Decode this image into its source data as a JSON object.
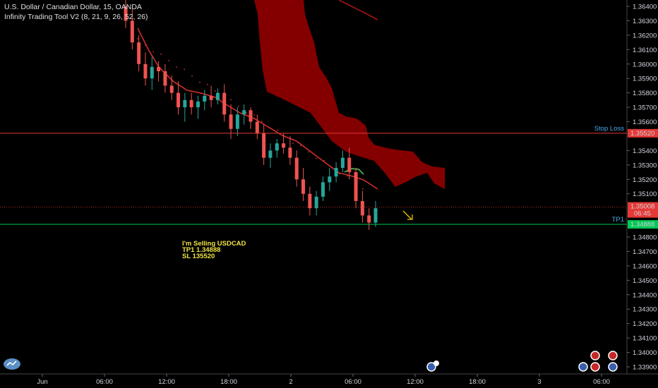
{
  "header": {
    "symbol_line": "U.S. Dollar / Canadian Dollar, 15, OANDA",
    "indicator_line": "Infinity Trading Tool V2 (8, 21, 9, 26, 52, 26)"
  },
  "chart_data": {
    "type": "candlestick",
    "symbol": "USDCAD",
    "interval": "15",
    "source": "OANDA",
    "ylim": [
      1.339,
      1.3645
    ],
    "y_ticks": [
      "1.36400",
      "1.36300",
      "1.36200",
      "1.36100",
      "1.36000",
      "1.35900",
      "1.35800",
      "1.35700",
      "1.35600",
      "1.35520",
      "1.35400",
      "1.35300",
      "1.35200",
      "1.35100",
      "1.35008",
      "1.34888",
      "1.34800",
      "1.34700",
      "1.34600",
      "1.34500",
      "1.34400",
      "1.34300",
      "1.34200",
      "1.34100",
      "1.34000",
      "1.33900"
    ],
    "x_ticks": [
      "Jun",
      "06:00",
      "12:00",
      "18:00",
      "2",
      "06:00",
      "12:00",
      "18:00",
      "3",
      "06:00"
    ],
    "lines": [
      {
        "name": "Stop Loss",
        "value": 1.3552,
        "color": "#e53935",
        "label": "Stop Loss",
        "price_tag": "1.35520"
      },
      {
        "name": "Last",
        "value": 1.35008,
        "color": "#e53935",
        "dotted": true,
        "price_tag": "1.35008",
        "countdown": "06:45"
      },
      {
        "name": "TP1",
        "value": 1.34888,
        "color": "#00c853",
        "label": "TP1",
        "price_tag": "1.34888"
      }
    ],
    "annotation": [
      "I'm Selling USDCAD",
      "TP1 1.34888",
      "SL 135520"
    ],
    "candles": [
      [
        0,
        1.364,
        1.3645,
        1.3625,
        1.363
      ],
      [
        1,
        1.363,
        1.3638,
        1.361,
        1.3615
      ],
      [
        2,
        1.3615,
        1.362,
        1.3595,
        1.36
      ],
      [
        3,
        1.36,
        1.3608,
        1.3585,
        1.359
      ],
      [
        4,
        1.359,
        1.3605,
        1.3582,
        1.3598
      ],
      [
        5,
        1.3598,
        1.3602,
        1.3588,
        1.3595
      ],
      [
        6,
        1.3595,
        1.36,
        1.358,
        1.3585
      ],
      [
        7,
        1.3585,
        1.3592,
        1.3575,
        1.358
      ],
      [
        8,
        1.358,
        1.3588,
        1.3565,
        1.357
      ],
      [
        9,
        1.357,
        1.358,
        1.356,
        1.3575
      ],
      [
        10,
        1.3575,
        1.358,
        1.3565,
        1.357
      ],
      [
        11,
        1.357,
        1.3578,
        1.3562,
        1.3574
      ],
      [
        12,
        1.3574,
        1.3582,
        1.3568,
        1.3578
      ],
      [
        13,
        1.3578,
        1.3585,
        1.357,
        1.3575
      ],
      [
        14,
        1.3575,
        1.3583,
        1.3572,
        1.358
      ],
      [
        15,
        1.358,
        1.3586,
        1.356,
        1.3565
      ],
      [
        16,
        1.3565,
        1.3572,
        1.3548,
        1.3555
      ],
      [
        17,
        1.3555,
        1.357,
        1.355,
        1.3565
      ],
      [
        18,
        1.3565,
        1.3572,
        1.3558,
        1.3568
      ],
      [
        19,
        1.3568,
        1.357,
        1.3555,
        1.356
      ],
      [
        20,
        1.356,
        1.3565,
        1.3548,
        1.3552
      ],
      [
        21,
        1.3552,
        1.3558,
        1.353,
        1.3535
      ],
      [
        22,
        1.3535,
        1.3545,
        1.3528,
        1.354
      ],
      [
        23,
        1.354,
        1.3548,
        1.3535,
        1.3545
      ],
      [
        24,
        1.3545,
        1.3552,
        1.3538,
        1.3542
      ],
      [
        25,
        1.3542,
        1.355,
        1.353,
        1.3535
      ],
      [
        26,
        1.3535,
        1.354,
        1.3515,
        1.352
      ],
      [
        27,
        1.352,
        1.3528,
        1.3505,
        1.351
      ],
      [
        28,
        1.351,
        1.3515,
        1.3495,
        1.35
      ],
      [
        29,
        1.35,
        1.3512,
        1.3495,
        1.3508
      ],
      [
        30,
        1.3508,
        1.3522,
        1.3505,
        1.3518
      ],
      [
        31,
        1.3518,
        1.3528,
        1.3512,
        1.3522
      ],
      [
        32,
        1.3522,
        1.3532,
        1.3518,
        1.3528
      ],
      [
        33,
        1.3528,
        1.354,
        1.3525,
        1.3535
      ],
      [
        34,
        1.3535,
        1.3542,
        1.352,
        1.3525
      ],
      [
        35,
        1.3525,
        1.3528,
        1.35,
        1.3505
      ],
      [
        36,
        1.3505,
        1.3512,
        1.349,
        1.3495
      ],
      [
        37,
        1.3495,
        1.35,
        1.3485,
        1.349
      ],
      [
        38,
        1.349,
        1.3505,
        1.3487,
        1.35
      ]
    ]
  }
}
